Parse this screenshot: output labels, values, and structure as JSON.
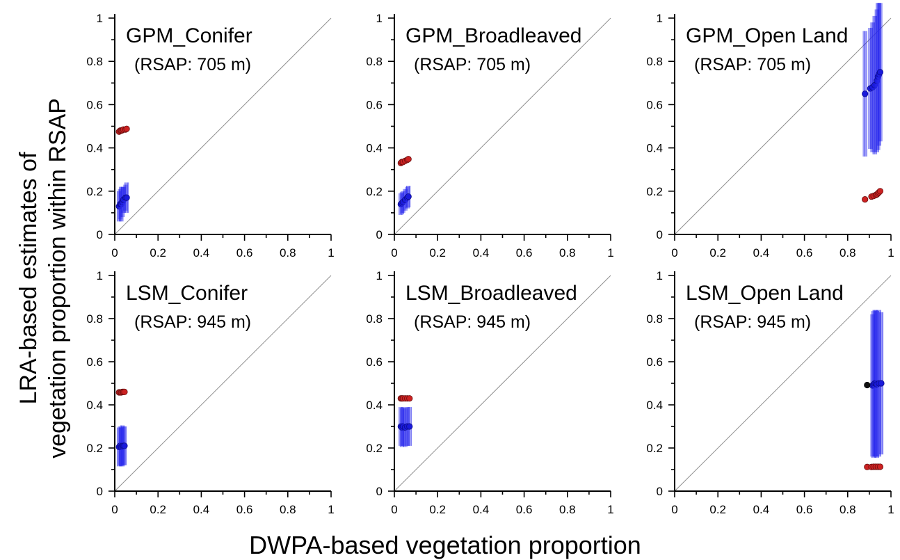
{
  "figure": {
    "ylabel_line1": "LRA-based estimates of",
    "ylabel_line2": "vegetation proportion within RSAP",
    "xlabel": "DWPA-based vegetation proportion"
  },
  "colors": {
    "red_points": "#cc2222",
    "blue_points": "#1a1adb",
    "blue_bars": "#2a2aee",
    "identity_line": "#909090",
    "outlier_point": "#111111"
  },
  "chart_data": [
    {
      "type": "scatter",
      "title": "GPM_Conifer",
      "subtitle": "(RSAP: 705 m)",
      "xlim": [
        0,
        1
      ],
      "ylim": [
        0,
        1
      ],
      "xticks": [
        "0",
        "0.2",
        "0.4",
        "0.6",
        "0.8",
        "1"
      ],
      "yticks": [
        "0",
        "0.2",
        "0.4",
        "0.6",
        "0.8",
        "1"
      ],
      "identity_line": true,
      "series": [
        {
          "color": "red",
          "points": [
            [
              0.02,
              0.475
            ],
            [
              0.025,
              0.48
            ],
            [
              0.03,
              0.48
            ],
            [
              0.035,
              0.482
            ],
            [
              0.04,
              0.485
            ],
            [
              0.05,
              0.485
            ],
            [
              0.055,
              0.488
            ]
          ]
        },
        {
          "color": "blue",
          "points": [
            [
              0.02,
              0.13,
              0.07
            ],
            [
              0.025,
              0.14,
              0.07
            ],
            [
              0.03,
              0.14,
              0.08
            ],
            [
              0.035,
              0.15,
              0.07
            ],
            [
              0.04,
              0.16,
              0.06
            ],
            [
              0.05,
              0.17,
              0.06
            ],
            [
              0.055,
              0.17,
              0.07
            ]
          ]
        }
      ]
    },
    {
      "type": "scatter",
      "title": "GPM_Broadleaved",
      "subtitle": "(RSAP: 705 m)",
      "xlim": [
        0,
        1
      ],
      "ylim": [
        0,
        1
      ],
      "xticks": [
        "0",
        "0.2",
        "0.4",
        "0.6",
        "0.8",
        "1"
      ],
      "yticks": [
        "0",
        "0.2",
        "0.4",
        "0.6",
        "0.8",
        "1"
      ],
      "identity_line": true,
      "series": [
        {
          "color": "red",
          "points": [
            [
              0.03,
              0.33
            ],
            [
              0.035,
              0.335
            ],
            [
              0.04,
              0.335
            ],
            [
              0.05,
              0.34
            ],
            [
              0.06,
              0.345
            ],
            [
              0.065,
              0.348
            ]
          ]
        },
        {
          "color": "blue",
          "points": [
            [
              0.03,
              0.14,
              0.05
            ],
            [
              0.035,
              0.145,
              0.05
            ],
            [
              0.04,
              0.15,
              0.05
            ],
            [
              0.05,
              0.16,
              0.05
            ],
            [
              0.06,
              0.17,
              0.05
            ],
            [
              0.065,
              0.175,
              0.05
            ]
          ]
        }
      ]
    },
    {
      "type": "scatter",
      "title": "GPM_Open Land",
      "subtitle": "(RSAP: 705 m)",
      "xlim": [
        0,
        1
      ],
      "ylim": [
        0,
        1
      ],
      "xticks": [
        "0",
        "0.2",
        "0.4",
        "0.6",
        "0.8",
        "1"
      ],
      "yticks": [
        "0",
        "0.2",
        "0.4",
        "0.6",
        "0.8",
        "1"
      ],
      "identity_line": true,
      "series": [
        {
          "color": "red",
          "points": [
            [
              0.88,
              0.162
            ],
            [
              0.91,
              0.175
            ],
            [
              0.92,
              0.178
            ],
            [
              0.93,
              0.182
            ],
            [
              0.935,
              0.185
            ],
            [
              0.94,
              0.19
            ],
            [
              0.945,
              0.195
            ],
            [
              0.95,
              0.2
            ]
          ]
        },
        {
          "color": "blue",
          "points": [
            [
              0.88,
              0.65,
              0.29
            ],
            [
              0.905,
              0.675,
              0.28
            ],
            [
              0.915,
              0.68,
              0.3
            ],
            [
              0.925,
              0.69,
              0.32
            ],
            [
              0.935,
              0.71,
              0.33
            ],
            [
              0.94,
              0.73,
              0.34
            ],
            [
              0.945,
              0.74,
              0.33
            ],
            [
              0.95,
              0.75,
              0.32
            ]
          ]
        }
      ]
    },
    {
      "type": "scatter",
      "title": "LSM_Conifer",
      "subtitle": "(RSAP: 945 m)",
      "xlim": [
        0,
        1
      ],
      "ylim": [
        0,
        1
      ],
      "xticks": [
        "0",
        "0.2",
        "0.4",
        "0.6",
        "0.8",
        "1"
      ],
      "yticks": [
        "0",
        "0.2",
        "0.4",
        "0.6",
        "0.8",
        "1"
      ],
      "identity_line": true,
      "series": [
        {
          "color": "red",
          "points": [
            [
              0.02,
              0.458
            ],
            [
              0.025,
              0.458
            ],
            [
              0.03,
              0.458
            ],
            [
              0.035,
              0.46
            ],
            [
              0.04,
              0.46
            ],
            [
              0.045,
              0.46
            ]
          ]
        },
        {
          "color": "blue",
          "points": [
            [
              0.02,
              0.205,
              0.09
            ],
            [
              0.025,
              0.21,
              0.09
            ],
            [
              0.03,
              0.205,
              0.09
            ],
            [
              0.035,
              0.21,
              0.095
            ],
            [
              0.04,
              0.21,
              0.09
            ],
            [
              0.045,
              0.21,
              0.09
            ]
          ]
        }
      ]
    },
    {
      "type": "scatter",
      "title": "LSM_Broadleaved",
      "subtitle": "(RSAP: 945 m)",
      "xlim": [
        0,
        1
      ],
      "ylim": [
        0,
        1
      ],
      "xticks": [
        "0",
        "0.2",
        "0.4",
        "0.6",
        "0.8",
        "1"
      ],
      "yticks": [
        "0",
        "0.2",
        "0.4",
        "0.6",
        "0.8",
        "1"
      ],
      "identity_line": true,
      "series": [
        {
          "color": "red",
          "points": [
            [
              0.03,
              0.43
            ],
            [
              0.035,
              0.43
            ],
            [
              0.04,
              0.43
            ],
            [
              0.05,
              0.43
            ],
            [
              0.06,
              0.43
            ],
            [
              0.07,
              0.43
            ]
          ]
        },
        {
          "color": "blue",
          "points": [
            [
              0.03,
              0.3,
              0.09
            ],
            [
              0.035,
              0.295,
              0.09
            ],
            [
              0.04,
              0.3,
              0.09
            ],
            [
              0.05,
              0.295,
              0.09
            ],
            [
              0.06,
              0.3,
              0.09
            ],
            [
              0.07,
              0.3,
              0.09
            ]
          ]
        }
      ]
    },
    {
      "type": "scatter",
      "title": "LSM_Open Land",
      "subtitle": "(RSAP: 945 m)",
      "xlim": [
        0,
        1
      ],
      "ylim": [
        0,
        1
      ],
      "xticks": [
        "0",
        "0.2",
        "0.4",
        "0.6",
        "0.8",
        "1"
      ],
      "yticks": [
        "0",
        "0.2",
        "0.4",
        "0.6",
        "0.8",
        "1"
      ],
      "identity_line": true,
      "series": [
        {
          "color": "red",
          "points": [
            [
              0.89,
              0.112
            ],
            [
              0.91,
              0.112
            ],
            [
              0.92,
              0.113
            ],
            [
              0.93,
              0.113
            ],
            [
              0.94,
              0.113
            ],
            [
              0.95,
              0.113
            ]
          ]
        },
        {
          "color": "blue",
          "points": [
            [
              0.915,
              0.49,
              0.33
            ],
            [
              0.92,
              0.495,
              0.34
            ],
            [
              0.925,
              0.5,
              0.34
            ],
            [
              0.93,
              0.5,
              0.34
            ],
            [
              0.935,
              0.495,
              0.34
            ],
            [
              0.945,
              0.5,
              0.34
            ],
            [
              0.955,
              0.5,
              0.33
            ]
          ]
        },
        {
          "color": "black",
          "points": [
            [
              0.89,
              0.492
            ]
          ]
        }
      ]
    }
  ]
}
